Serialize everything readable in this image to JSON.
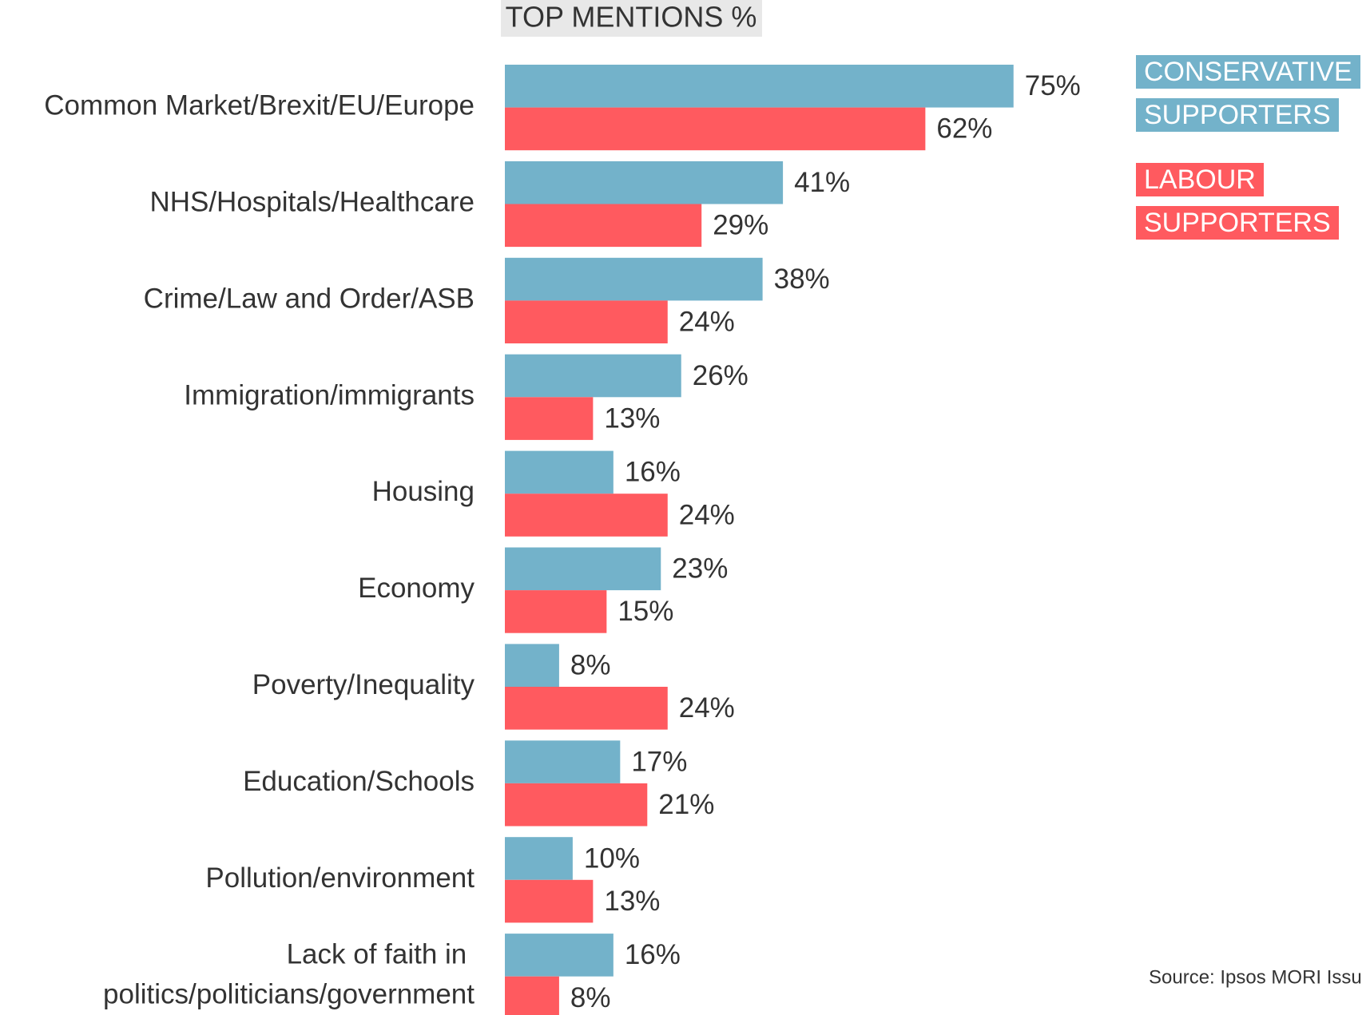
{
  "chart_data": {
    "type": "hbar",
    "title": "TOP MENTIONS %",
    "categories": [
      "Common Market/Brexit/EU/Europe",
      "NHS/Hospitals/Healthcare",
      "Crime/Law and Order/ASB",
      "Immigration/immigrants",
      "Housing",
      "Economy",
      "Poverty/Inequality",
      "Education/Schools",
      "Pollution/environment",
      "Lack of faith in politics/politicians/government"
    ],
    "series": [
      {
        "name": "CONSERVATIVE SUPPORTERS",
        "color": "#73b2ca",
        "values": [
          75,
          41,
          38,
          26,
          16,
          23,
          8,
          17,
          10,
          16
        ],
        "value_labels": [
          "75%",
          "41%",
          "38%",
          "26%",
          "16%",
          "23%",
          "8%",
          "17%",
          "10%",
          "16%"
        ]
      },
      {
        "name": "LABOUR SUPPORTERS",
        "color": "#ff5a5f",
        "values": [
          62,
          29,
          24,
          13,
          24,
          15,
          24,
          21,
          13,
          8
        ],
        "value_labels": [
          "62%",
          "29%",
          "24%",
          "13%",
          "24%",
          "15%",
          "24%",
          "21%",
          "13%",
          "8%"
        ]
      }
    ],
    "xlim": [
      0,
      100
    ],
    "source": "Source: Ipsos MORI Issu"
  }
}
